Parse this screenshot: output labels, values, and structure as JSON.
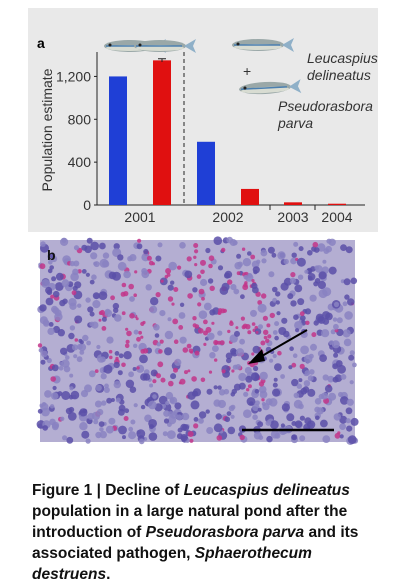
{
  "chart_data": {
    "type": "bar",
    "panel_label": "a",
    "y_label": "Population estimate",
    "categories": [
      "2001",
      "2002",
      "2003",
      "2004"
    ],
    "series": [
      {
        "color": "#1f3fd6",
        "values": [
          1200,
          590,
          null,
          null
        ]
      },
      {
        "color": "#e01010",
        "values": [
          1350,
          150,
          25,
          12
        ],
        "errors": [
          15,
          null,
          null,
          null
        ]
      }
    ],
    "ylim": [
      0,
      1400
    ],
    "yticks": [
      0,
      400,
      800,
      {
        "value": 1200,
        "label": "1,200"
      }
    ],
    "annotations": [
      "Leucaspius delineatus",
      "+",
      "Pseudorasbora parva"
    ]
  },
  "panel_b": {
    "label": "b"
  },
  "caption": [
    {
      "text": "Figure 1 | Decline of ",
      "italic": false
    },
    {
      "text": "Leucaspius delineatus",
      "italic": true
    },
    {
      "text": " population in a large natural pond after the introduction of ",
      "italic": false
    },
    {
      "text": "Pseudorasbora parva",
      "italic": true
    },
    {
      "text": " and its associated pathogen, ",
      "italic": false
    },
    {
      "text": "Sphaerothecum destruens",
      "italic": true
    },
    {
      "text": ".",
      "italic": false
    }
  ]
}
